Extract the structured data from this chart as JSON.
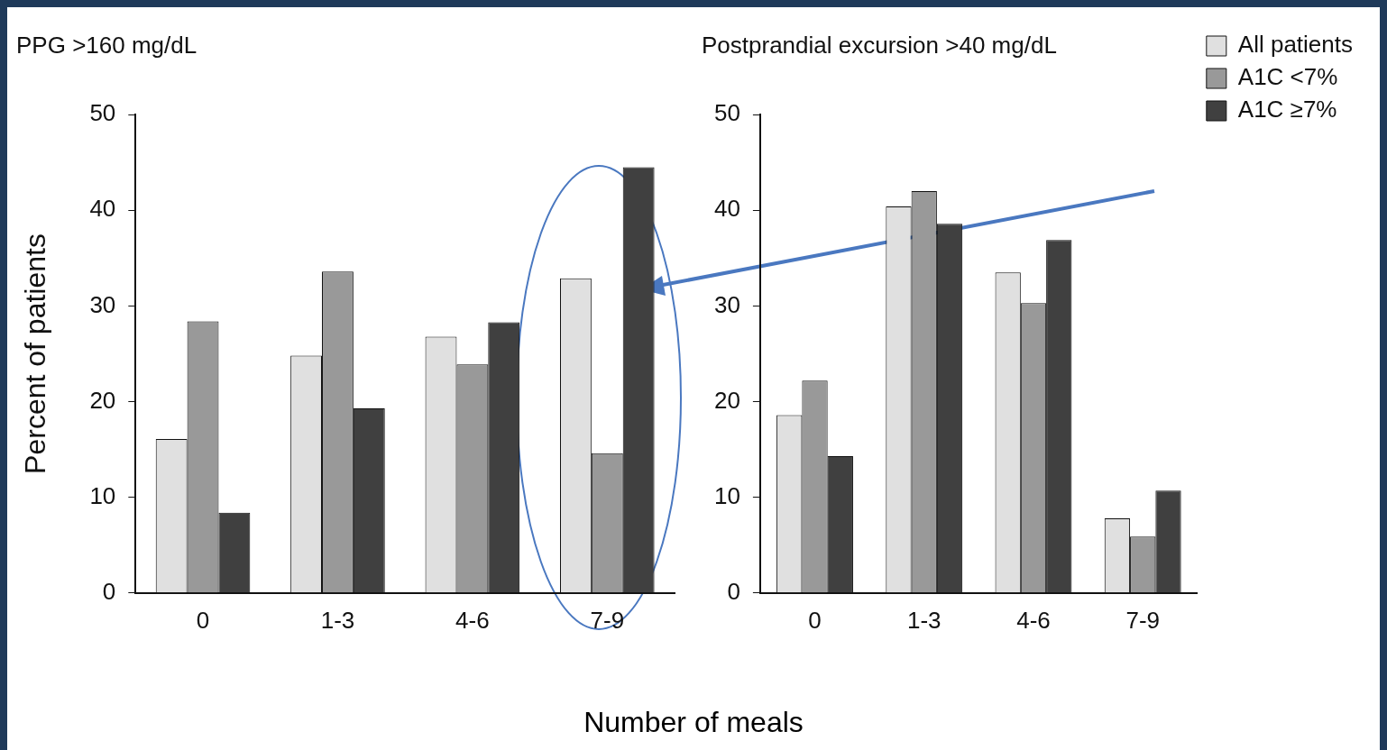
{
  "chart_data": [
    {
      "type": "bar",
      "title": "PPG >160 mg/dL",
      "ylabel": "Percent of patients",
      "xlabel": "Number of meals",
      "categories": [
        "0",
        "1-3",
        "4-6",
        "7-9"
      ],
      "ylim": [
        0,
        50
      ],
      "yticks": [
        0,
        10,
        20,
        30,
        40,
        50
      ],
      "grid": false,
      "legend": false,
      "series": [
        {
          "color": "#e0e0e0",
          "values": [
            16.1,
            24.8,
            26.8,
            32.9
          ]
        },
        {
          "color": "#999999",
          "values": [
            28.4,
            33.6,
            23.9,
            14.6
          ]
        },
        {
          "color": "#404040",
          "values": [
            8.4,
            19.3,
            28.3,
            44.5
          ]
        }
      ]
    },
    {
      "type": "bar",
      "title": "Postprandial excursion >40 mg/dL",
      "categories": [
        "0",
        "1-3",
        "4-6",
        "7-9"
      ],
      "ylim": [
        0,
        50
      ],
      "yticks": [
        0,
        10,
        20,
        30,
        40,
        50
      ],
      "grid": false,
      "legend": "top right",
      "series": [
        {
          "name": "All patients",
          "color": "#e0e0e0",
          "values": [
            18.6,
            40.4,
            33.5,
            7.8
          ]
        },
        {
          "name": "A1C <7%",
          "color": "#999999",
          "values": [
            22.2,
            42.0,
            30.3,
            5.9
          ]
        },
        {
          "name": "A1C ≥7%",
          "color": "#404040",
          "values": [
            14.3,
            38.6,
            36.9,
            10.7
          ]
        }
      ]
    }
  ]
}
